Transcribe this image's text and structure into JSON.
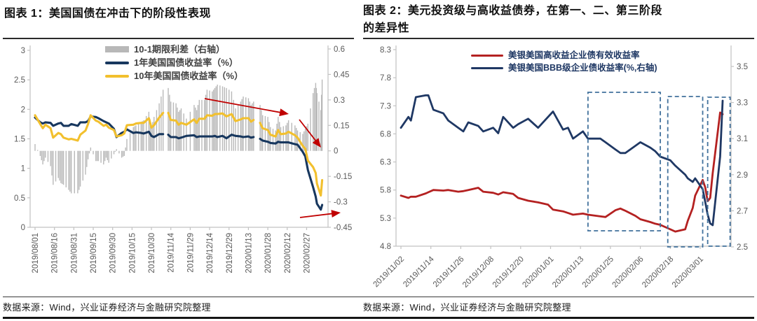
{
  "page": {
    "background": "#ffffff",
    "accent_navy": "#17375e",
    "accent_yellow": "#f2c02e",
    "accent_red": "#b42121",
    "accent_gray": "#b8b8b8",
    "stage_box_color": "#41719c",
    "arrow_color": "#c00000"
  },
  "figure1": {
    "title": "图表 1：美国国债在冲击下的阶段性表现",
    "source": "数据来源：Wind，兴业证券经济与金融研究院整理",
    "legend": [
      {
        "label": "10-1期限利差（右轴）",
        "swatch": "bar",
        "color": "#b8b8b8"
      },
      {
        "label": "1年美国国债收益率（%）",
        "swatch": "line",
        "color": "#17375e"
      },
      {
        "label": "10年美国国债收益率（%）",
        "swatch": "line",
        "color": "#f2c02e"
      }
    ],
    "chart_data": {
      "type": "bar+line combo, dual axis",
      "x_tick_labels": [
        "2019/08/01",
        "2019/08/16",
        "2019/08/31",
        "2019/09/15",
        "2019/09/30",
        "2019/10/15",
        "2019/10/30",
        "2019/11/14",
        "2019/11/29",
        "2019/12/14",
        "2019/12/29",
        "2020/01/13",
        "2020/01/28",
        "2020/02/12",
        "2020/02/27"
      ],
      "left_axis": {
        "min": 0,
        "max": 3,
        "label_values": [
          "3",
          "2.5",
          "2",
          "1.5",
          "1",
          "0.5",
          "0"
        ]
      },
      "right_axis": {
        "min": -0.45,
        "max": 0.6,
        "label_values": [
          "0.6",
          "0.45",
          "0.3",
          "0.15",
          "0",
          "-0.15",
          "-0.3",
          "-0.45"
        ]
      },
      "dates": [
        "2019/08/01",
        "2019/08/05",
        "2019/08/07",
        "2019/08/09",
        "2019/08/13",
        "2019/08/15",
        "2019/08/19",
        "2019/08/21",
        "2019/08/23",
        "2019/08/27",
        "2019/08/29",
        "2019/09/03",
        "2019/09/05",
        "2019/09/09",
        "2019/09/11",
        "2019/09/13",
        "2019/09/17",
        "2019/09/19",
        "2019/09/23",
        "2019/09/25",
        "2019/09/27",
        "2019/10/01",
        "2019/10/03",
        "2019/10/07",
        "2019/10/09",
        "2019/10/11",
        "2019/10/16",
        "2019/10/18",
        "2019/10/22",
        "2019/10/24",
        "2019/10/28",
        "2019/10/30",
        "2019/11/01",
        "2019/11/05",
        "2019/11/08",
        "2019/11/11",
        "2019/11/12",
        "2019/11/14",
        "2019/11/18",
        "2019/11/20",
        "2019/11/22",
        "2019/11/26",
        "2019/12/02",
        "2019/12/04",
        "2019/12/06",
        "2019/12/10",
        "2019/12/12",
        "2019/12/16",
        "2019/12/18",
        "2019/12/20",
        "2019/12/24",
        "2019/12/27",
        "2019/12/31",
        "2020/01/03",
        "2020/01/07",
        "2020/01/09",
        "2020/01/13",
        "2020/01/15",
        "2020/01/17",
        "2020/01/20",
        "2020/01/22",
        "2020/01/24",
        "2020/01/28",
        "2020/01/30",
        "2020/02/03",
        "2020/02/05",
        "2020/02/07",
        "2020/02/11",
        "2020/02/13",
        "2020/02/18",
        "2020/02/20",
        "2020/02/24",
        "2020/02/26",
        "2020/02/28",
        "2020/03/03",
        "2020/03/05",
        "2020/03/06",
        "2020/03/09",
        "2020/03/10"
      ],
      "series": [
        {
          "name": "10-1期限利差（右轴）",
          "type": "bar",
          "axis": "right",
          "color": "#b9b9b9",
          "values": [
            0.04,
            -0.03,
            -0.08,
            -0.04,
            -0.09,
            -0.2,
            -0.16,
            -0.19,
            -0.2,
            -0.23,
            -0.25,
            -0.25,
            -0.21,
            -0.14,
            -0.05,
            0.02,
            -0.06,
            -0.06,
            -0.08,
            -0.04,
            -0.07,
            -0.02,
            0.01,
            -0.04,
            -0.03,
            0.07,
            0.14,
            0.15,
            0.17,
            0.18,
            0.23,
            0.14,
            0.2,
            0.28,
            0.36,
            null,
            0.37,
            0.29,
            0.28,
            0.23,
            0.25,
            0.19,
            0.27,
            0.24,
            0.3,
            0.3,
            0.36,
            0.35,
            0.37,
            0.39,
            0.38,
            0.37,
            0.35,
            0.25,
            0.29,
            0.32,
            0.31,
            0.27,
            0.29,
            null,
            0.27,
            0.21,
            0.2,
            0.14,
            0.12,
            0.2,
            0.14,
            0.15,
            0.18,
            0.15,
            0.12,
            0.1,
            0.13,
            0.16,
            0.34,
            0.4,
            0.34,
            0.24,
            0.42
          ]
        },
        {
          "name": "1年美国国债收益率（%）",
          "type": "line",
          "axis": "left",
          "color": "#17375e",
          "values": [
            1.86,
            1.78,
            1.76,
            1.78,
            1.77,
            1.72,
            1.76,
            1.77,
            1.72,
            1.72,
            1.75,
            1.72,
            1.78,
            1.78,
            1.8,
            1.88,
            1.87,
            1.85,
            1.8,
            1.78,
            1.76,
            1.67,
            1.53,
            1.6,
            1.62,
            1.66,
            1.6,
            1.61,
            1.6,
            1.59,
            1.62,
            1.55,
            1.53,
            1.58,
            1.58,
            null,
            1.57,
            1.53,
            1.53,
            1.51,
            1.52,
            1.55,
            1.56,
            1.53,
            1.54,
            1.54,
            1.54,
            1.54,
            1.55,
            1.53,
            1.55,
            1.51,
            1.57,
            1.55,
            1.54,
            1.53,
            1.54,
            1.52,
            1.53,
            null,
            1.5,
            1.47,
            1.45,
            1.43,
            1.42,
            1.45,
            1.44,
            1.44,
            1.44,
            1.41,
            1.4,
            1.28,
            1.2,
            0.97,
            0.68,
            0.52,
            0.4,
            0.3,
            0.38
          ]
        },
        {
          "name": "10年美国国债收益率（%）",
          "type": "line",
          "axis": "left",
          "color": "#f2c02e",
          "values": [
            1.9,
            1.75,
            1.68,
            1.74,
            1.68,
            1.52,
            1.6,
            1.58,
            1.52,
            1.49,
            1.5,
            1.47,
            1.57,
            1.64,
            1.75,
            1.9,
            1.81,
            1.79,
            1.72,
            1.74,
            1.69,
            1.65,
            1.54,
            1.56,
            1.59,
            1.73,
            1.74,
            1.76,
            1.77,
            1.77,
            1.85,
            1.69,
            1.73,
            1.86,
            1.94,
            null,
            1.94,
            1.82,
            1.81,
            1.74,
            1.77,
            1.74,
            1.83,
            1.77,
            1.84,
            1.84,
            1.9,
            1.89,
            1.92,
            1.92,
            1.93,
            1.88,
            1.92,
            1.8,
            1.83,
            1.85,
            1.85,
            1.79,
            1.82,
            null,
            1.77,
            1.68,
            1.65,
            1.57,
            1.54,
            1.65,
            1.58,
            1.59,
            1.62,
            1.56,
            1.52,
            1.38,
            1.33,
            1.13,
            1.02,
            0.92,
            0.74,
            0.54,
            0.8
          ]
        }
      ],
      "annotation_arrows_color": "#c00000",
      "annotation_arrows": [
        {
          "x1": 292,
          "y1": 141,
          "x2": 412,
          "y2": 163
        },
        {
          "x1": 427,
          "y1": 171,
          "x2": 458,
          "y2": 211
        },
        {
          "x1": 428,
          "y1": 311,
          "x2": 486,
          "y2": 304
        }
      ]
    }
  },
  "figure2": {
    "title_line1": "图表 2：美元投资级与高收益债券，在第一、二、第三阶段",
    "title_line2": "的差异性",
    "source": "数据来源：Wind，兴业证券经济与金融研究院整理",
    "legend": [
      {
        "label": "美银美国高收益企业债有效收益率",
        "swatch": "line",
        "color": "#b42121"
      },
      {
        "label": "美银美国BBB级企业债收益率(%,右轴)",
        "swatch": "line",
        "color": "#1f3864"
      }
    ],
    "chart_data": {
      "type": "line, dual axis, stage boxes",
      "x_tick_labels": [
        "2019/11/02",
        "2019/11/14",
        "2019/11/26",
        "2019/12/08",
        "2019/12/20",
        "2020/01/01",
        "2020/01/13",
        "2020/01/25",
        "2020/02/06",
        "2020/02/18",
        "2020/03/01"
      ],
      "left_axis": {
        "min": 4.8,
        "max": 8.3,
        "label_values": [
          "8.3",
          "7.8",
          "7.3",
          "6.8",
          "6.3",
          "5.8",
          "5.3",
          "4.8"
        ]
      },
      "right_axis": {
        "min": 2.5,
        "max": 3.5,
        "label_values": [
          "3.5",
          "3.3",
          "3.1",
          "2.9",
          "2.7",
          "2.5"
        ]
      },
      "dates": [
        "2019/11/02",
        "2019/11/05",
        "2019/11/06",
        "2019/11/08",
        "2019/11/12",
        "2019/11/13",
        "2019/11/15",
        "2019/11/19",
        "2019/11/21",
        "2019/11/25",
        "2019/11/27",
        "2019/11/29",
        "2019/12/03",
        "2019/12/05",
        "2019/12/09",
        "2019/12/11",
        "2019/12/13",
        "2019/12/17",
        "2019/12/19",
        "2019/12/23",
        "2019/12/27",
        "2019/12/31",
        "2020/01/02",
        "2020/01/06",
        "2020/01/08",
        "2020/01/10",
        "2020/01/14",
        "2020/01/16",
        "2020/01/21",
        "2020/01/23",
        "2020/01/27",
        "2020/01/29",
        "2020/01/31",
        "2020/02/04",
        "2020/02/06",
        "2020/02/10",
        "2020/02/12",
        "2020/02/14",
        "2020/02/18",
        "2020/02/20",
        "2020/02/24",
        "2020/02/25",
        "2020/02/27",
        "2020/02/28",
        "2020/03/02",
        "2020/03/03",
        "2020/03/04",
        "2020/03/05",
        "2020/03/06",
        "2020/03/09",
        "2020/03/10"
      ],
      "series": [
        {
          "name": "美银美国高收益企业债有效收益率",
          "type": "line",
          "axis": "left",
          "color": "#b42121",
          "values": [
            5.7,
            5.66,
            5.68,
            5.68,
            5.74,
            5.76,
            5.8,
            5.79,
            5.8,
            5.77,
            5.78,
            5.8,
            5.84,
            5.77,
            5.75,
            5.72,
            5.76,
            5.73,
            5.66,
            5.61,
            5.58,
            5.54,
            5.45,
            5.42,
            5.39,
            5.36,
            5.38,
            5.36,
            5.33,
            5.32,
            5.44,
            5.47,
            5.43,
            5.34,
            5.28,
            5.23,
            5.2,
            5.18,
            5.1,
            5.06,
            5.1,
            5.25,
            5.48,
            5.7,
            5.98,
            5.85,
            5.6,
            5.66,
            6.1,
            7.18,
            7.15
          ]
        },
        {
          "name": "美银美国BBB级企业债收益率(%,右轴)",
          "type": "line",
          "axis": "right",
          "color": "#1f3864",
          "values": [
            3.16,
            3.22,
            3.2,
            3.33,
            3.34,
            3.34,
            3.26,
            3.24,
            3.2,
            3.16,
            3.14,
            3.19,
            3.17,
            3.14,
            3.16,
            3.13,
            3.22,
            3.16,
            3.18,
            3.21,
            3.16,
            3.22,
            3.25,
            3.15,
            3.16,
            3.1,
            3.14,
            3.1,
            3.1,
            3.08,
            3.04,
            3.02,
            3.02,
            3.06,
            3.08,
            3.05,
            3.03,
            3.0,
            2.98,
            2.95,
            2.9,
            2.88,
            2.86,
            2.88,
            2.82,
            2.75,
            2.68,
            2.63,
            2.62,
            3.0,
            3.31
          ]
        }
      ],
      "stage_boxes_color": "#41719c",
      "stage_boxes": [
        {
          "date_from": "2020/01/16",
          "date_to": "2020/02/14",
          "y_top": 132,
          "y_bottom": 330
        },
        {
          "date_from": "2020/02/17",
          "date_to": "2020/03/02",
          "y_top": 138,
          "y_bottom": 353
        },
        {
          "date_from": "2020/03/04",
          "date_to": "2020/03/13",
          "y_top": 139,
          "y_bottom": 352
        }
      ]
    }
  }
}
